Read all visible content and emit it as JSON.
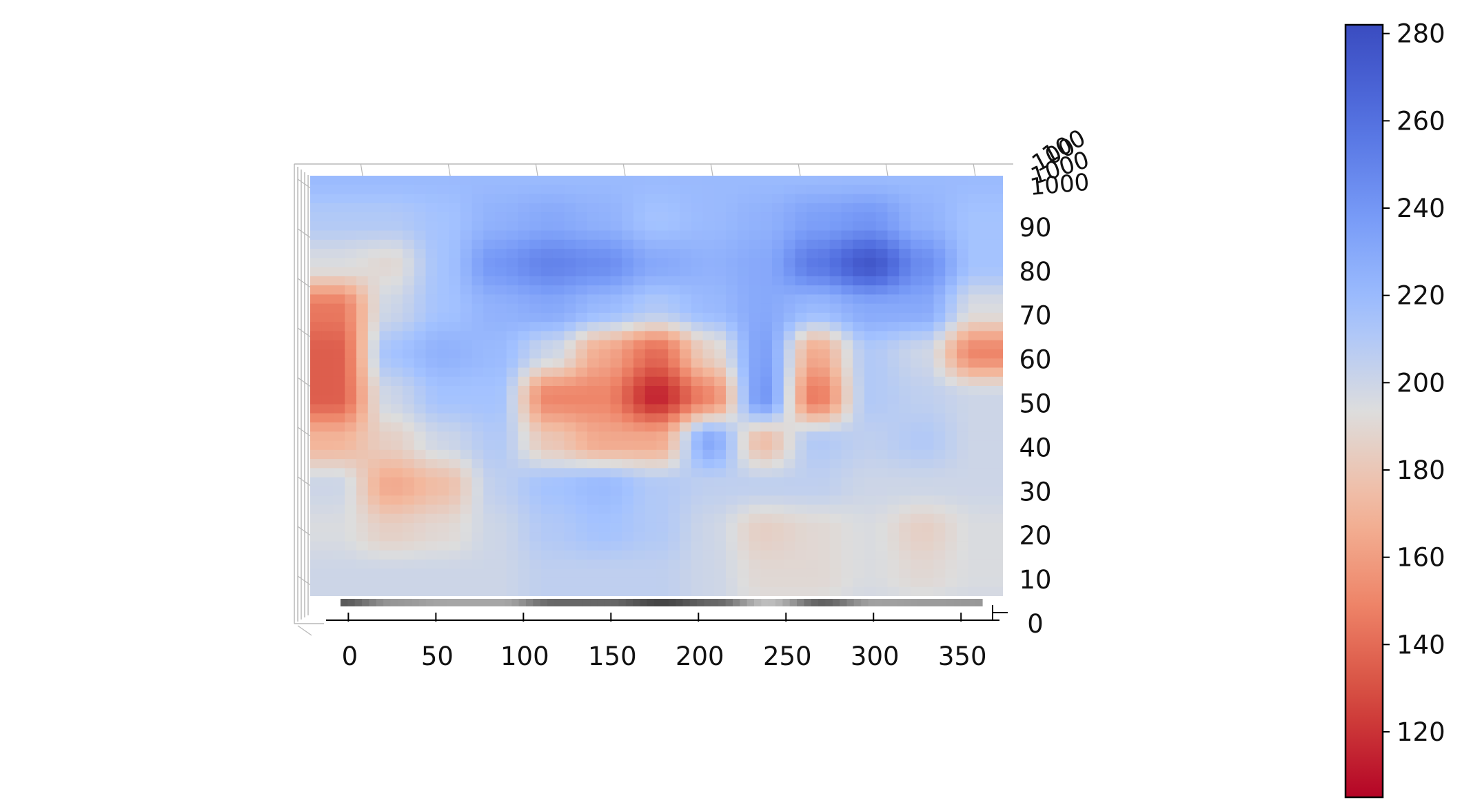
{
  "chart_data": {
    "type": "heatmap",
    "title": "",
    "xlabel": "",
    "ylabel": "",
    "x_ticks": [
      "0",
      "50",
      "100",
      "150",
      "200",
      "250",
      "300",
      "350"
    ],
    "y_ticks": [
      "0",
      "10",
      "20",
      "30",
      "40",
      "50",
      "60",
      "70",
      "80",
      "90"
    ],
    "top_tick_labels": [
      "100",
      "100",
      "1000",
      "1000"
    ],
    "xlim": [
      -10,
      370
    ],
    "ylim": [
      0,
      100
    ],
    "grid": true,
    "colormap": "coolwarm_r",
    "colorbar": {
      "position": "right",
      "ticks": [
        "120",
        "140",
        "160",
        "180",
        "200",
        "220",
        "240",
        "260",
        "280"
      ],
      "range": [
        105,
        282
      ]
    },
    "grid_x": [
      0,
      30,
      60,
      90,
      120,
      150,
      180,
      210,
      240,
      270,
      300,
      330,
      360
    ],
    "grid_y": [
      0,
      10,
      20,
      30,
      40,
      50,
      60,
      70,
      80,
      90,
      100
    ],
    "z": [
      [
        200,
        200,
        200,
        200,
        205,
        205,
        205,
        200,
        195,
        195,
        200,
        200,
        200
      ],
      [
        200,
        200,
        200,
        200,
        205,
        205,
        205,
        200,
        190,
        190,
        195,
        190,
        195
      ],
      [
        195,
        185,
        190,
        200,
        210,
        215,
        210,
        200,
        185,
        190,
        195,
        185,
        195
      ],
      [
        200,
        165,
        175,
        205,
        215,
        220,
        210,
        205,
        205,
        205,
        200,
        200,
        200
      ],
      [
        170,
        185,
        200,
        210,
        180,
        165,
        165,
        230,
        175,
        210,
        205,
        210,
        200
      ],
      [
        135,
        200,
        215,
        215,
        150,
        150,
        115,
        150,
        240,
        145,
        210,
        205,
        200
      ],
      [
        135,
        215,
        225,
        220,
        200,
        165,
        140,
        185,
        235,
        165,
        210,
        200,
        150
      ],
      [
        145,
        200,
        215,
        225,
        230,
        220,
        210,
        220,
        230,
        220,
        230,
        230,
        195
      ],
      [
        195,
        190,
        215,
        240,
        250,
        245,
        230,
        225,
        230,
        255,
        275,
        245,
        215
      ],
      [
        210,
        210,
        215,
        225,
        230,
        225,
        215,
        220,
        225,
        235,
        240,
        225,
        215
      ],
      [
        220,
        220,
        220,
        220,
        220,
        220,
        220,
        220,
        220,
        220,
        220,
        220,
        220
      ]
    ]
  }
}
